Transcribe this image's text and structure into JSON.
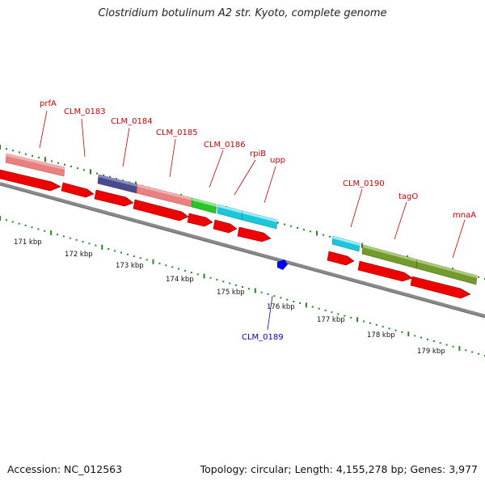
{
  "title": "Clostridium botulinum A2 str. Kyoto, complete genome",
  "footer": {
    "accession": "Accession: NC_012563",
    "summary": "Topology: circular; Length: 4,155,278 bp; Genes: 3,977"
  },
  "gene_labels": [
    {
      "text": "prfA",
      "color": "#cc0000"
    },
    {
      "text": "CLM_0183",
      "color": "#cc0000"
    },
    {
      "text": "CLM_0184",
      "color": "#cc0000"
    },
    {
      "text": "CLM_0185",
      "color": "#cc0000"
    },
    {
      "text": "CLM_0186",
      "color": "#cc0000"
    },
    {
      "text": "rpiB",
      "color": "#cc0000"
    },
    {
      "text": "upp",
      "color": "#cc0000"
    },
    {
      "text": "CLM_0190",
      "color": "#cc0000"
    },
    {
      "text": "tagO",
      "color": "#cc0000"
    },
    {
      "text": "mnaA",
      "color": "#cc0000"
    },
    {
      "text": "CLM_0189",
      "color": "#0000cc"
    }
  ],
  "kbp_labels": [
    "171 kbp",
    "172 kbp",
    "173 kbp",
    "174 kbp",
    "175 kbp",
    "176 kbp",
    "177 kbp",
    "178 kbp",
    "179 kbp"
  ],
  "colors": {
    "cds": "#ee0000",
    "pink": "#ee8888",
    "purple": "#555599",
    "green": "#33cc33",
    "cyan": "#22ccdd",
    "olive": "#779933",
    "backbone": "#888888",
    "tick": "#228822",
    "marker": "#0000ee"
  }
}
